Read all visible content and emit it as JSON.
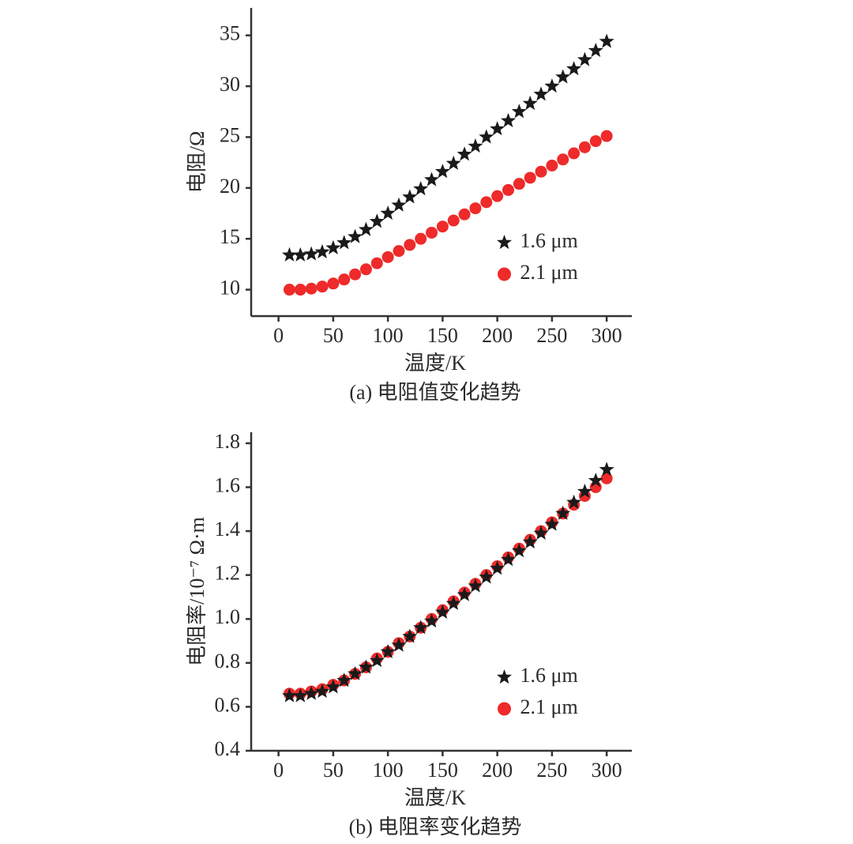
{
  "chart_data": [
    {
      "type": "scatter",
      "caption": "(a) 电阻值变化趋势",
      "x_label": "温度/K",
      "y_label": "电阻/Ω",
      "x": [
        10,
        20,
        30,
        40,
        50,
        60,
        70,
        80,
        90,
        100,
        110,
        120,
        130,
        140,
        150,
        160,
        170,
        180,
        190,
        200,
        210,
        220,
        230,
        240,
        250,
        260,
        270,
        280,
        290,
        300
      ],
      "series": [
        {
          "name": "1.6 μm",
          "color": "#1a1a1a",
          "marker": "star",
          "values": [
            13.4,
            13.4,
            13.5,
            13.7,
            14.1,
            14.6,
            15.2,
            15.9,
            16.7,
            17.5,
            18.3,
            19.1,
            19.9,
            20.8,
            21.6,
            22.4,
            23.3,
            24.1,
            25.0,
            25.8,
            26.6,
            27.5,
            28.3,
            29.2,
            30.0,
            30.9,
            31.7,
            32.6,
            33.5,
            34.4
          ]
        },
        {
          "name": "2.1 μm",
          "color": "#ee2a2a",
          "marker": "circle",
          "values": [
            10.0,
            10.0,
            10.1,
            10.3,
            10.6,
            11.0,
            11.5,
            12.0,
            12.6,
            13.2,
            13.8,
            14.4,
            15.0,
            15.6,
            16.2,
            16.8,
            17.4,
            18.0,
            18.6,
            19.2,
            19.8,
            20.4,
            21.0,
            21.6,
            22.2,
            22.8,
            23.4,
            24.0,
            24.6,
            25.1
          ]
        }
      ],
      "xlim": [
        -25,
        323
      ],
      "xticks": [
        0,
        50,
        100,
        150,
        200,
        250,
        300
      ],
      "ylim": [
        7.4,
        37.7
      ],
      "yticks": [
        10,
        15,
        20,
        25,
        30,
        35
      ],
      "grid": false,
      "legend": "lower right"
    },
    {
      "type": "scatter",
      "caption": "(b) 电阻率变化趋势",
      "x_label": "温度/K",
      "y_label": "电阻率/10⁻⁷ Ω·m",
      "x": [
        10,
        20,
        30,
        40,
        50,
        60,
        70,
        80,
        90,
        100,
        110,
        120,
        130,
        140,
        150,
        160,
        170,
        180,
        190,
        200,
        210,
        220,
        230,
        240,
        250,
        260,
        270,
        280,
        290,
        300
      ],
      "series": [
        {
          "name": "1.6 μm",
          "color": "#1a1a1a",
          "marker": "star",
          "values": [
            0.65,
            0.65,
            0.66,
            0.67,
            0.69,
            0.72,
            0.75,
            0.78,
            0.81,
            0.85,
            0.88,
            0.92,
            0.96,
            0.99,
            1.03,
            1.07,
            1.11,
            1.15,
            1.19,
            1.23,
            1.27,
            1.31,
            1.35,
            1.39,
            1.43,
            1.48,
            1.53,
            1.58,
            1.63,
            1.68
          ]
        },
        {
          "name": "2.1 μm",
          "color": "#ee2a2a",
          "marker": "circle",
          "values": [
            0.66,
            0.66,
            0.67,
            0.68,
            0.7,
            0.72,
            0.75,
            0.78,
            0.82,
            0.85,
            0.89,
            0.92,
            0.96,
            1.0,
            1.04,
            1.08,
            1.12,
            1.16,
            1.2,
            1.24,
            1.28,
            1.32,
            1.36,
            1.4,
            1.44,
            1.48,
            1.52,
            1.56,
            1.6,
            1.64
          ]
        }
      ],
      "xlim": [
        -25,
        323
      ],
      "xticks": [
        0,
        50,
        100,
        150,
        200,
        250,
        300
      ],
      "ylim": [
        0.4,
        1.85
      ],
      "yticks": [
        {
          "value": 0.4,
          "label": "0.4"
        },
        {
          "value": 0.6,
          "label": "0.6"
        },
        {
          "value": 0.8,
          "label": "0.8"
        },
        {
          "value": 1.0,
          "label": "1.0"
        },
        {
          "value": 1.2,
          "label": "1.2"
        },
        {
          "value": 1.4,
          "label": "1.4"
        },
        {
          "value": 1.6,
          "label": "1.6"
        },
        {
          "value": 1.8,
          "label": "1.8"
        }
      ],
      "grid": false,
      "legend": "lower right"
    }
  ]
}
